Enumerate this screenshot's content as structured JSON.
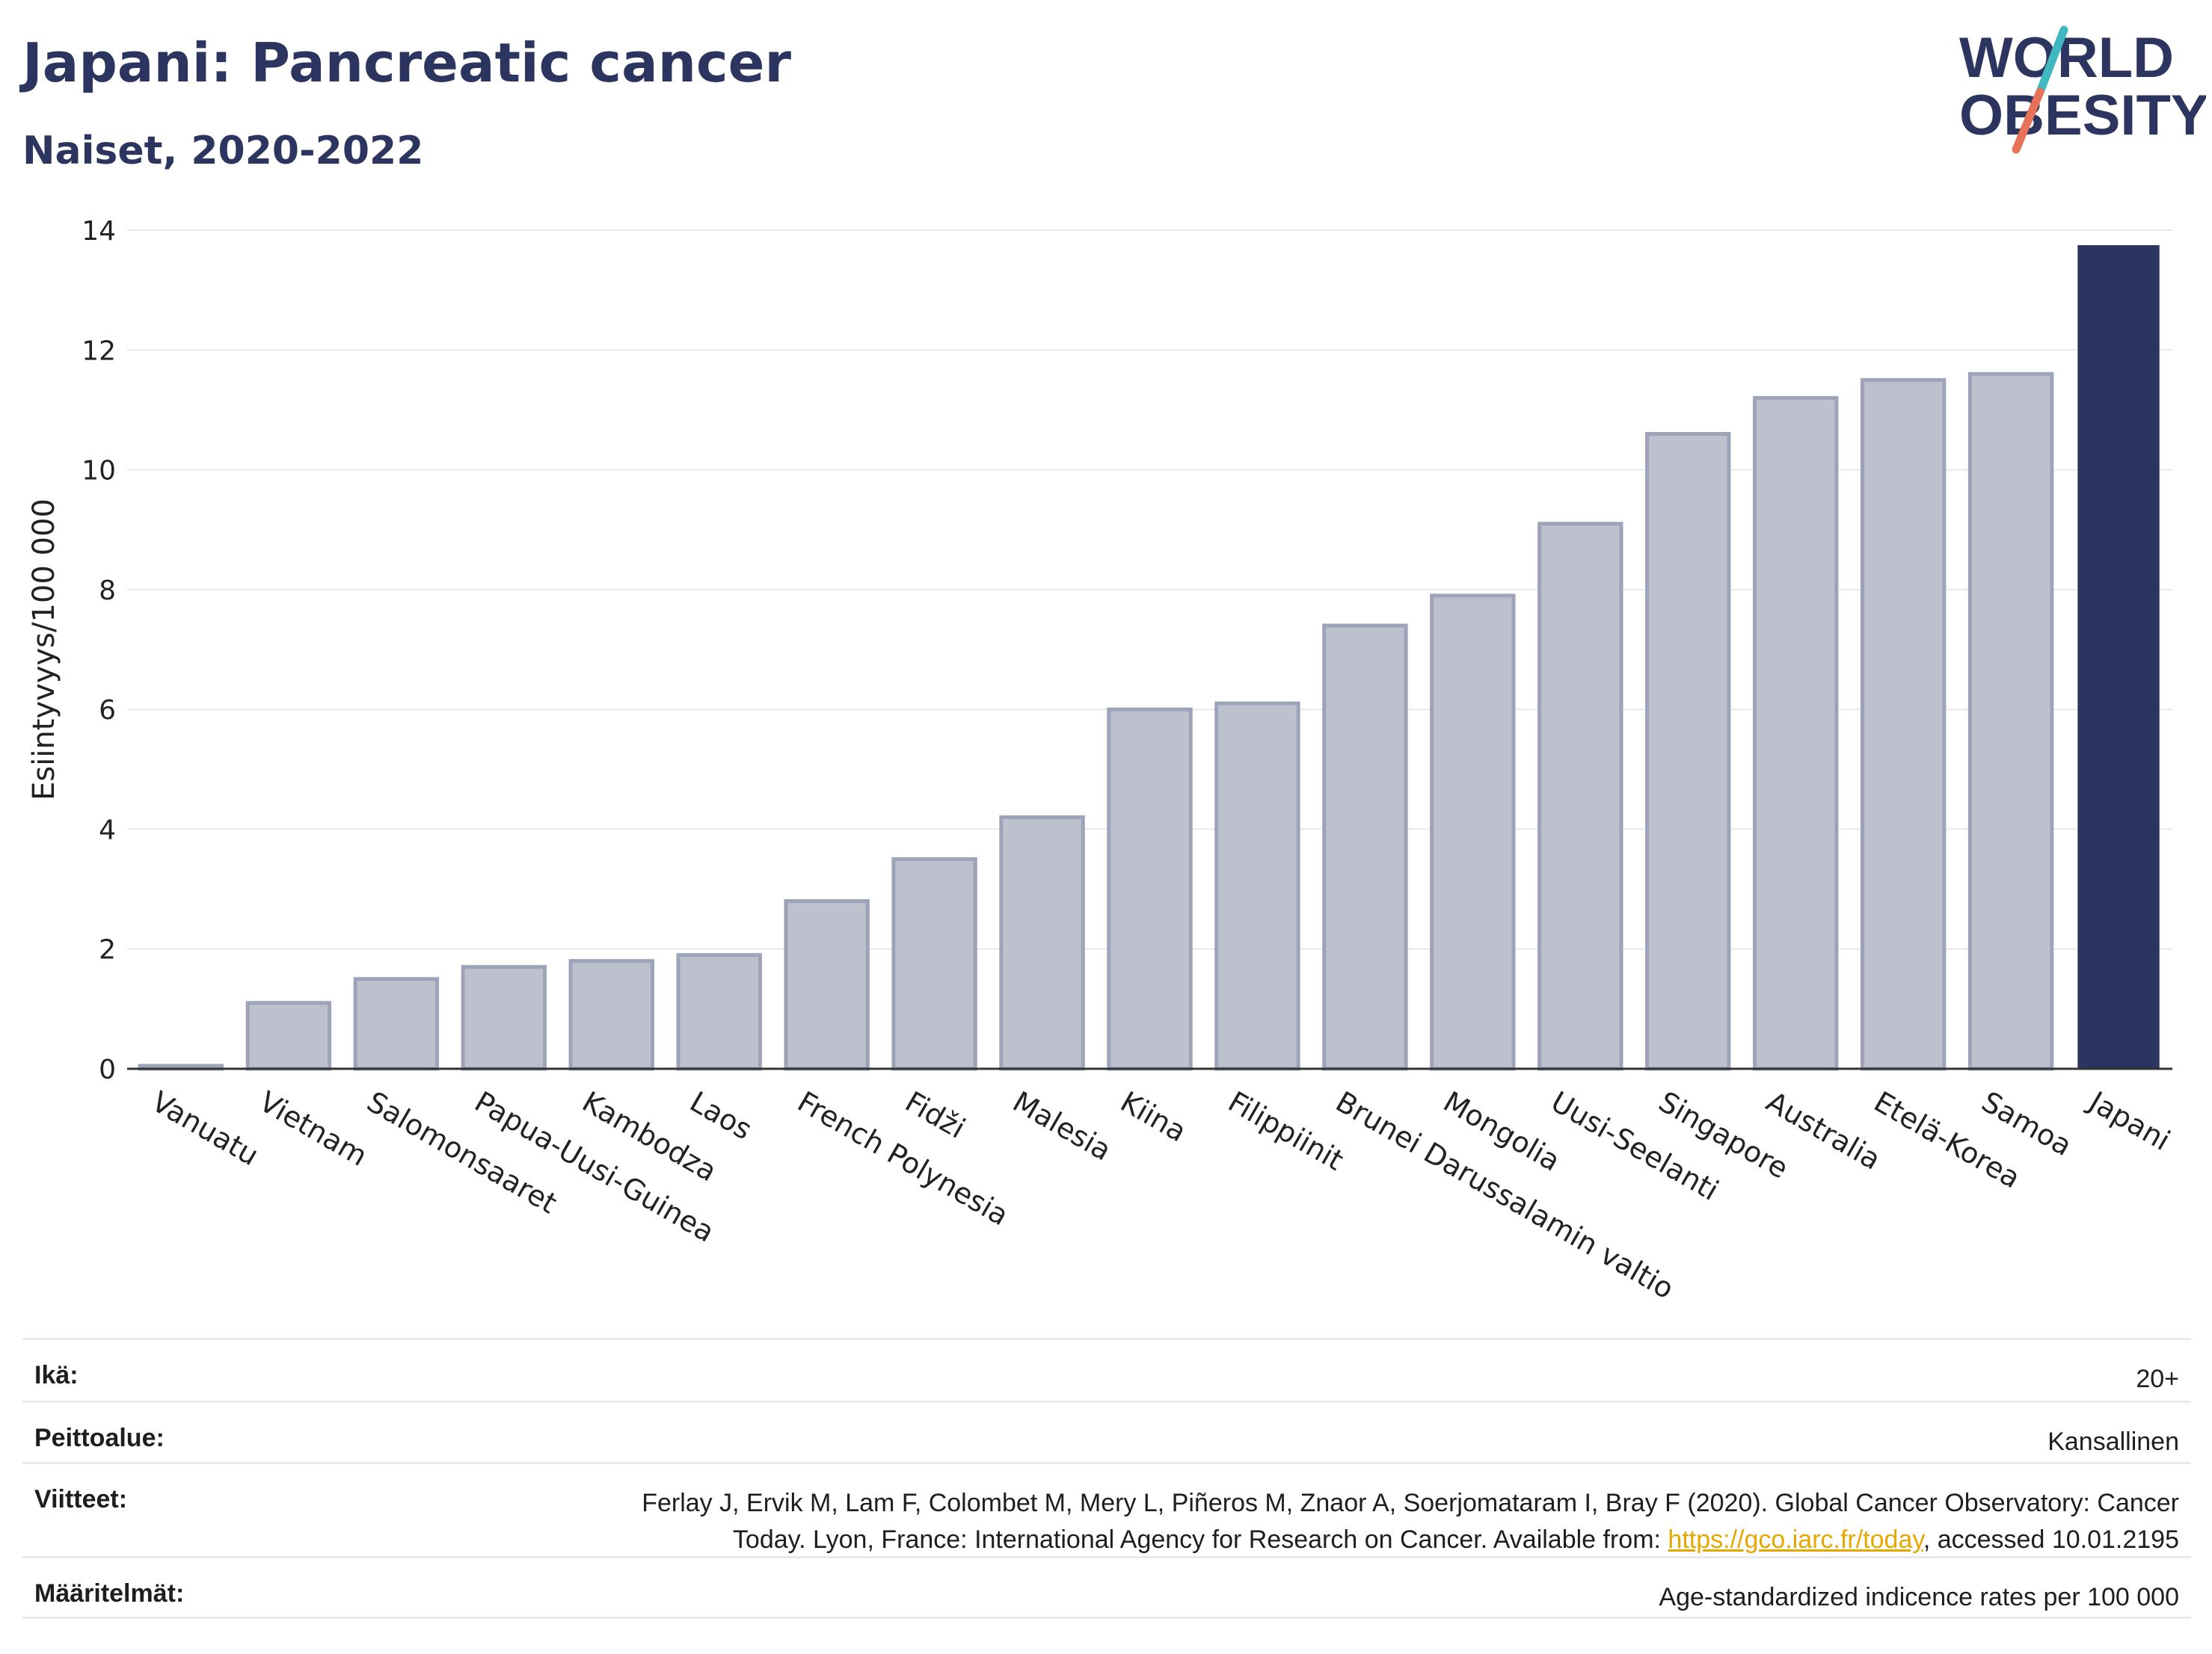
{
  "header": {
    "title": "Japani: Pancreatic cancer",
    "subtitle": "Naiset, 2020-2022"
  },
  "logo": {
    "line1": "WORLD",
    "line2": "OBESITY",
    "slash_colors": [
      "#3fb8c0",
      "#e8715a"
    ]
  },
  "colors": {
    "bar": "#bdc1ce",
    "bar_stroke": "#9da3b8",
    "highlight": "#2b3560",
    "grid": "#e6e9ee",
    "axis": "#333333"
  },
  "chart_data": {
    "type": "bar",
    "ylabel": "Esiintyvyys/100 000",
    "ylim": [
      0,
      14
    ],
    "yticks": [
      0,
      2,
      4,
      6,
      8,
      10,
      12,
      14
    ],
    "grid": true,
    "highlight_category": "Japani",
    "categories": [
      "Vanuatu",
      "Vietnam",
      "Salomonsaaret",
      "Papua-Uusi-Guinea",
      "Kambodza",
      "Laos",
      "French Polynesia",
      "Fidži",
      "Malesia",
      "Kiina",
      "Filippiinit",
      "Brunei Darussalamin valtio",
      "Mongolia",
      "Uusi-Seelanti",
      "Singapore",
      "Australia",
      "Etelä-Korea",
      "Samoa",
      "Japani"
    ],
    "values": [
      0.05,
      1.1,
      1.5,
      1.7,
      1.8,
      1.9,
      2.8,
      3.5,
      4.2,
      6.0,
      6.1,
      7.4,
      7.9,
      9.1,
      10.6,
      11.2,
      11.5,
      11.6,
      13.75
    ]
  },
  "meta": {
    "age_label": "Ikä:",
    "age_value": "20+",
    "coverage_label": "Peittoalue:",
    "coverage_value": "Kansallinen",
    "refs_label": "Viitteet:",
    "refs_line1": "Ferlay J, Ervik M, Lam F, Colombet M, Mery L, Piñeros M, Znaor A, Soerjomataram I, Bray F (2020). Global Cancer Observatory: Cancer",
    "refs_line2_pre": "Today. Lyon, France: International Agency for Research on Cancer. Available from: ",
    "refs_link": "https://gco.iarc.fr/today",
    "refs_line2_post": ", accessed 10.01.2195",
    "defs_label": "Määritelmät:",
    "defs_value": "Age-standardized indicence rates per 100 000"
  }
}
